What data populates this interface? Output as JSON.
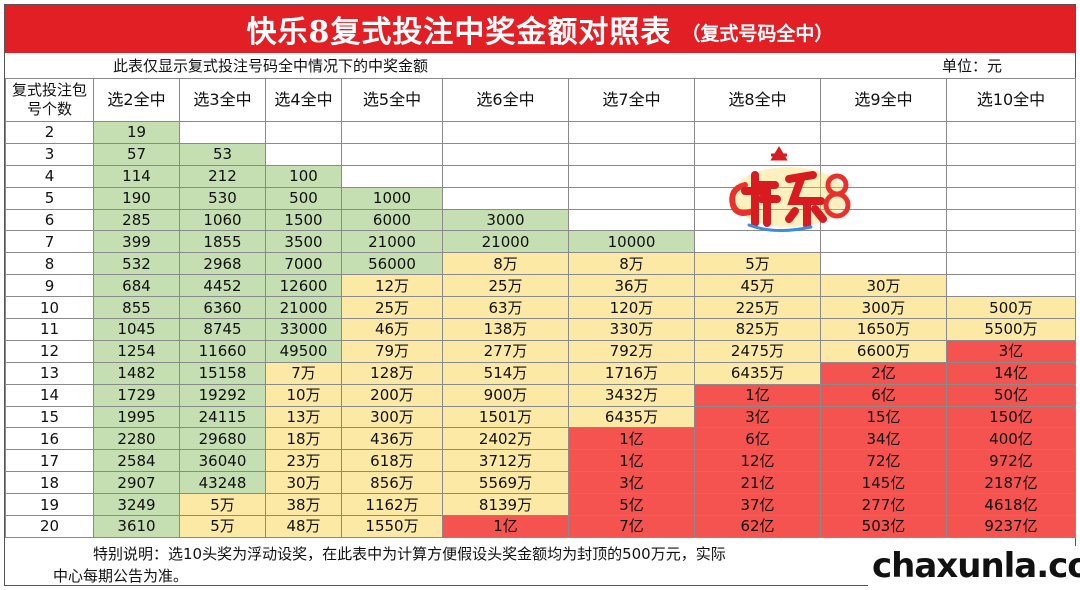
{
  "title": {
    "main": "快乐8复式投注中奖金额对照表",
    "sub": "（复式号码全中）"
  },
  "notes": {
    "left": "此表仅显示复式投注号码全中情况下的中奖金额",
    "right": "单位：元"
  },
  "table": {
    "corner_header": "复式投注包号个数",
    "headers": [
      "选2全中",
      "选3全中",
      "选4全中",
      "选5全中",
      "选6全中",
      "选7全中",
      "选8全中",
      "选9全中",
      "选10全中"
    ],
    "rows": [
      {
        "n": "2",
        "cells": [
          "19",
          "",
          "",
          "",
          "",
          "",
          "",
          "",
          ""
        ]
      },
      {
        "n": "3",
        "cells": [
          "57",
          "53",
          "",
          "",
          "",
          "",
          "",
          "",
          ""
        ]
      },
      {
        "n": "4",
        "cells": [
          "114",
          "212",
          "100",
          "",
          "",
          "",
          "",
          "",
          ""
        ]
      },
      {
        "n": "5",
        "cells": [
          "190",
          "530",
          "500",
          "1000",
          "",
          "",
          "",
          "",
          ""
        ]
      },
      {
        "n": "6",
        "cells": [
          "285",
          "1060",
          "1500",
          "6000",
          "3000",
          "",
          "",
          "",
          ""
        ]
      },
      {
        "n": "7",
        "cells": [
          "399",
          "1855",
          "3500",
          "21000",
          "21000",
          "10000",
          "",
          "",
          ""
        ]
      },
      {
        "n": "8",
        "cells": [
          "532",
          "2968",
          "7000",
          "56000",
          "8万",
          "8万",
          "5万",
          "",
          ""
        ]
      },
      {
        "n": "9",
        "cells": [
          "684",
          "4452",
          "12600",
          "12万",
          "25万",
          "36万",
          "45万",
          "30万",
          ""
        ]
      },
      {
        "n": "10",
        "cells": [
          "855",
          "6360",
          "21000",
          "25万",
          "63万",
          "120万",
          "225万",
          "300万",
          "500万"
        ]
      },
      {
        "n": "11",
        "cells": [
          "1045",
          "8745",
          "33000",
          "46万",
          "138万",
          "330万",
          "825万",
          "1650万",
          "5500万"
        ]
      },
      {
        "n": "12",
        "cells": [
          "1254",
          "11660",
          "49500",
          "79万",
          "277万",
          "792万",
          "2475万",
          "6600万",
          "3亿"
        ]
      },
      {
        "n": "13",
        "cells": [
          "1482",
          "15158",
          "7万",
          "128万",
          "514万",
          "1716万",
          "6435万",
          "2亿",
          "14亿"
        ]
      },
      {
        "n": "14",
        "cells": [
          "1729",
          "19292",
          "10万",
          "200万",
          "900万",
          "3432万",
          "1亿",
          "6亿",
          "50亿"
        ]
      },
      {
        "n": "15",
        "cells": [
          "1995",
          "24115",
          "13万",
          "300万",
          "1501万",
          "6435万",
          "3亿",
          "15亿",
          "150亿"
        ]
      },
      {
        "n": "16",
        "cells": [
          "2280",
          "29680",
          "18万",
          "436万",
          "2402万",
          "1亿",
          "6亿",
          "34亿",
          "400亿"
        ]
      },
      {
        "n": "17",
        "cells": [
          "2584",
          "36040",
          "23万",
          "618万",
          "3712万",
          "1亿",
          "12亿",
          "72亿",
          "972亿"
        ]
      },
      {
        "n": "18",
        "cells": [
          "2907",
          "43248",
          "30万",
          "856万",
          "5569万",
          "3亿",
          "21亿",
          "145亿",
          "2187亿"
        ]
      },
      {
        "n": "19",
        "cells": [
          "3249",
          "5万",
          "38万",
          "1162万",
          "8139万",
          "5亿",
          "37亿",
          "277亿",
          "4618亿"
        ]
      },
      {
        "n": "20",
        "cells": [
          "3610",
          "5万",
          "48万",
          "1550万",
          "1亿",
          "7亿",
          "62亿",
          "503亿",
          "9237亿"
        ]
      }
    ]
  },
  "footer": {
    "line1": "特别说明：选10头奖为浮动设奖，在此表中为计算方便假设头奖金额均为封顶的500万元，实际",
    "line2": "中心每期公告为准。"
  },
  "colors": {
    "title_bg": "#e31f26",
    "green": "#c5dfb2",
    "yellow": "#fce9a6",
    "red": "#f5534f"
  },
  "logo": {
    "icon": "kuaile8-logo-icon"
  },
  "watermark": "chaxunla.com"
}
